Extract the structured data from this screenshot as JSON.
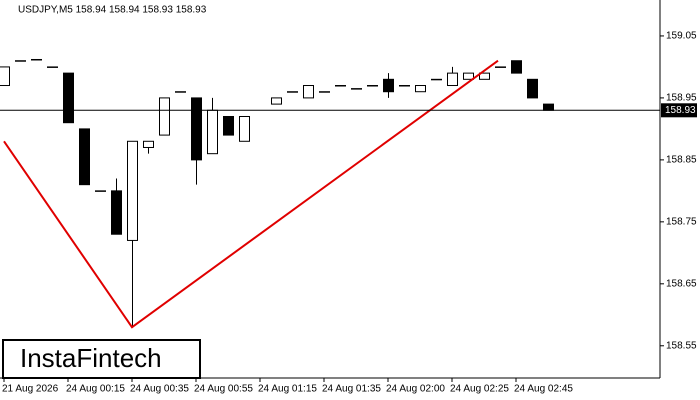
{
  "chart_data": {
    "type": "candlestick",
    "title": "USDJPY,M5  158.94 158.94 158.93 158.93",
    "watermark": "InstaFintech",
    "categories": [
      "21 Aug 2026",
      null,
      null,
      null,
      "24 Aug 00:15",
      null,
      null,
      null,
      "24 Aug 00:35",
      null,
      null,
      null,
      "24 Aug 00:55",
      null,
      null,
      null,
      "24 Aug 01:15",
      null,
      null,
      null,
      "24 Aug 01:35",
      null,
      null,
      null,
      "24 Aug 02:00",
      null,
      null,
      null,
      "24 Aug 02:25",
      null,
      null,
      null,
      "24 Aug 02:45",
      null,
      null
    ],
    "open": [
      158.97,
      159.01,
      159.012,
      159.0,
      158.99,
      158.9,
      158.8,
      158.8,
      158.72,
      158.87,
      158.89,
      158.96,
      158.95,
      158.86,
      158.92,
      158.88,
      null,
      158.94,
      158.96,
      158.95,
      158.96,
      158.97,
      158.965,
      158.97,
      158.98,
      158.97,
      158.96,
      158.98,
      158.97,
      158.98,
      158.98,
      159.0,
      159.01,
      158.98,
      158.94
    ],
    "high": [
      159.0,
      159.01,
      159.012,
      159.0,
      158.99,
      158.9,
      158.8,
      158.82,
      158.88,
      158.88,
      158.95,
      158.96,
      158.95,
      158.95,
      158.92,
      158.92,
      null,
      158.95,
      158.96,
      158.97,
      158.96,
      158.97,
      158.965,
      158.97,
      158.99,
      158.97,
      158.97,
      158.98,
      159.0,
      158.99,
      158.99,
      159.0,
      159.01,
      158.98,
      158.94
    ],
    "low": [
      158.97,
      159.01,
      159.012,
      159.0,
      158.91,
      158.81,
      158.8,
      158.73,
      158.58,
      158.86,
      158.89,
      158.96,
      158.81,
      158.86,
      158.89,
      158.88,
      null,
      158.94,
      158.96,
      158.95,
      158.96,
      158.97,
      158.965,
      158.97,
      158.95,
      158.97,
      158.96,
      158.98,
      158.97,
      158.98,
      158.98,
      159.0,
      158.99,
      158.95,
      158.93
    ],
    "close": [
      159.0,
      159.01,
      159.012,
      159.0,
      158.91,
      158.81,
      158.8,
      158.73,
      158.88,
      158.88,
      158.95,
      158.96,
      158.85,
      158.93,
      158.89,
      158.92,
      null,
      158.95,
      158.96,
      158.97,
      158.96,
      158.97,
      158.965,
      158.97,
      158.96,
      158.97,
      158.97,
      158.98,
      158.99,
      158.99,
      158.99,
      159.0,
      158.99,
      158.95,
      158.93
    ],
    "up_color": "#ffffff",
    "down_color": "#000000",
    "current_price": 158.93,
    "pattern": {
      "x": [
        0,
        8,
        30.875
      ],
      "values": [
        158.88,
        158.58,
        159.01
      ],
      "color": "#e00000"
    },
    "ylim": [
      158.498,
      159.108
    ],
    "yticks": [
      158.55,
      158.65,
      158.75,
      158.85,
      158.95,
      159.05
    ]
  }
}
